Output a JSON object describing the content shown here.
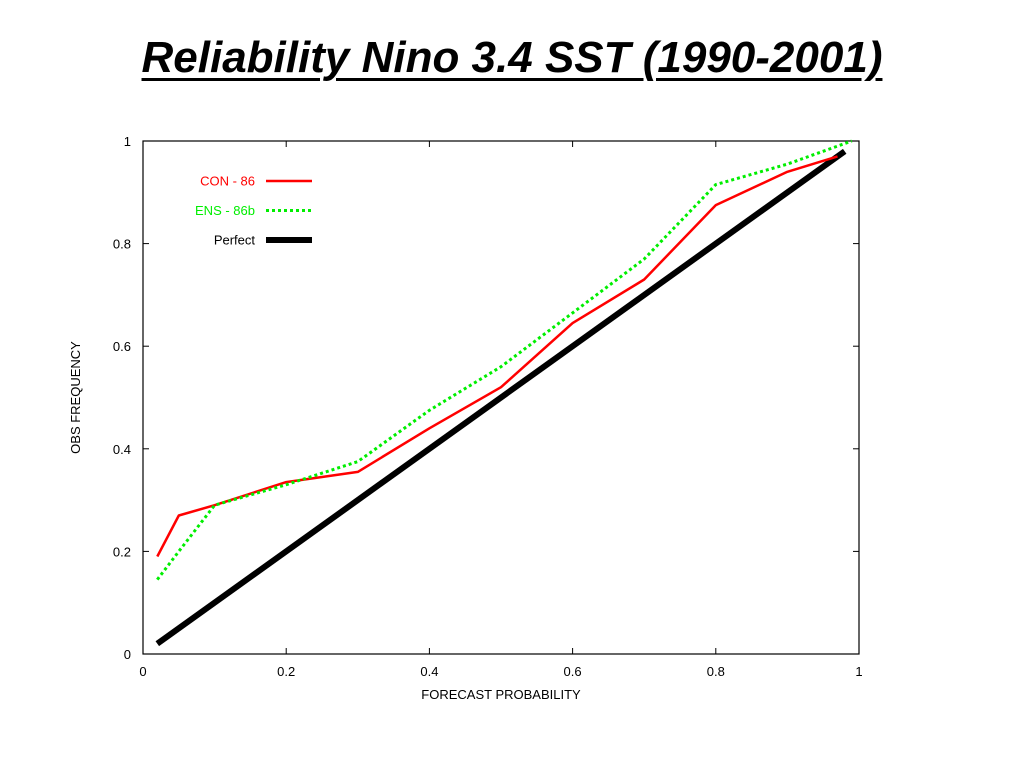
{
  "title": "Reliability Nino 3.4 SST (1990-2001)",
  "chart_data": {
    "type": "line",
    "title": "Reliability Nino 3.4 SST (1990-2001)",
    "xlabel": "FORECAST PROBABILITY",
    "ylabel": "OBS FREQUENCY",
    "xlim": [
      0,
      1
    ],
    "ylim": [
      0,
      1
    ],
    "xticks": [
      0,
      0.2,
      0.4,
      0.6,
      0.8,
      1
    ],
    "yticks": [
      0,
      0.2,
      0.4,
      0.6,
      0.8,
      1
    ],
    "xtick_labels": [
      "0",
      "0.2",
      "0.4",
      "0.6",
      "0.8",
      "1"
    ],
    "ytick_labels": [
      "0",
      "0.2",
      "0.4",
      "0.6",
      "0.8",
      "1"
    ],
    "grid": false,
    "legend_position": "top-left",
    "series": [
      {
        "name": "CON - 86",
        "color": "#ff0000",
        "style": "solid",
        "x": [
          0.02,
          0.05,
          0.1,
          0.2,
          0.3,
          0.4,
          0.5,
          0.6,
          0.7,
          0.8,
          0.9,
          0.97
        ],
        "y": [
          0.19,
          0.27,
          0.29,
          0.335,
          0.355,
          0.44,
          0.52,
          0.645,
          0.73,
          0.875,
          0.94,
          0.97
        ]
      },
      {
        "name": "ENS - 86b",
        "color": "#00ee00",
        "style": "dotted",
        "x": [
          0.02,
          0.05,
          0.1,
          0.2,
          0.3,
          0.4,
          0.5,
          0.6,
          0.7,
          0.8,
          0.9,
          0.99
        ],
        "y": [
          0.145,
          0.2,
          0.29,
          0.33,
          0.375,
          0.475,
          0.56,
          0.665,
          0.77,
          0.915,
          0.955,
          1.0
        ]
      },
      {
        "name": "Perfect",
        "color": "#000000",
        "style": "solid-thick",
        "x": [
          0.02,
          0.98
        ],
        "y": [
          0.02,
          0.98
        ]
      }
    ]
  }
}
